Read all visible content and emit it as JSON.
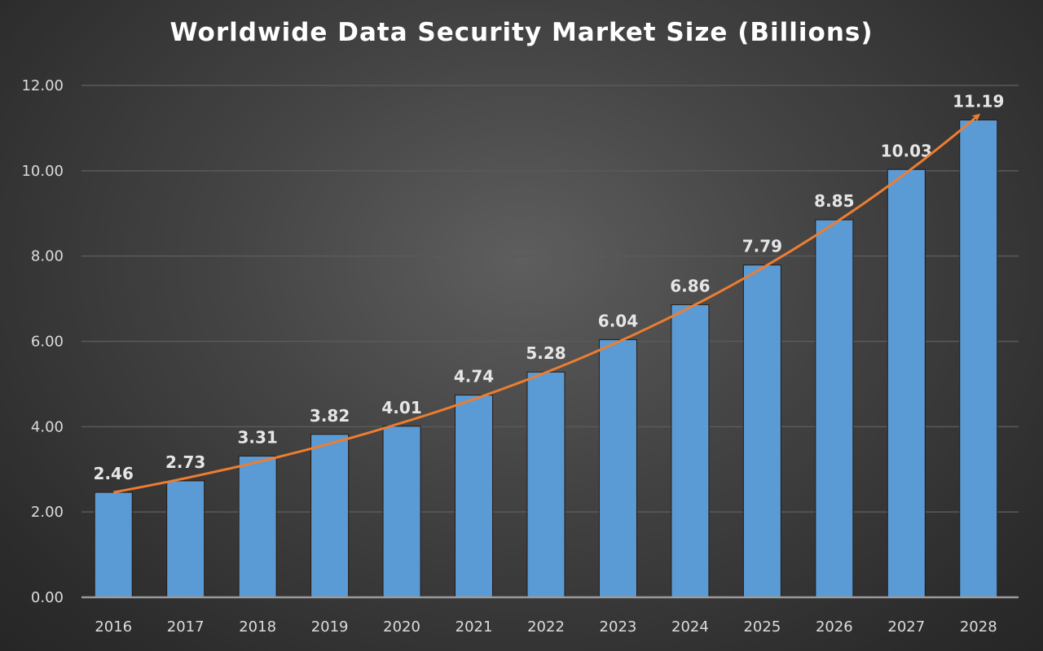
{
  "chart_data": {
    "type": "bar",
    "title": "Worldwide Data Security Market Size (Billions)",
    "categories": [
      "2016",
      "2017",
      "2018",
      "2019",
      "2020",
      "2021",
      "2022",
      "2023",
      "2024",
      "2025",
      "2026",
      "2027",
      "2028"
    ],
    "values": [
      2.46,
      2.73,
      3.31,
      3.82,
      4.01,
      4.74,
      5.28,
      6.04,
      6.86,
      7.79,
      8.85,
      10.03,
      11.19
    ],
    "data_labels": [
      "2.46",
      "2.73",
      "3.31",
      "3.82",
      "4.01",
      "4.74",
      "5.28",
      "6.04",
      "6.86",
      "7.79",
      "8.85",
      "10.03",
      "11.19"
    ],
    "ylim": [
      0,
      12
    ],
    "yticks": [
      "0.00",
      "2.00",
      "4.00",
      "6.00",
      "8.00",
      "10.00",
      "12.00"
    ],
    "grid": true,
    "trendline": "exponential",
    "colors": {
      "bar": "#5b9bd5",
      "trend": "#ed7d31",
      "grid": "#5a5a5a"
    }
  }
}
